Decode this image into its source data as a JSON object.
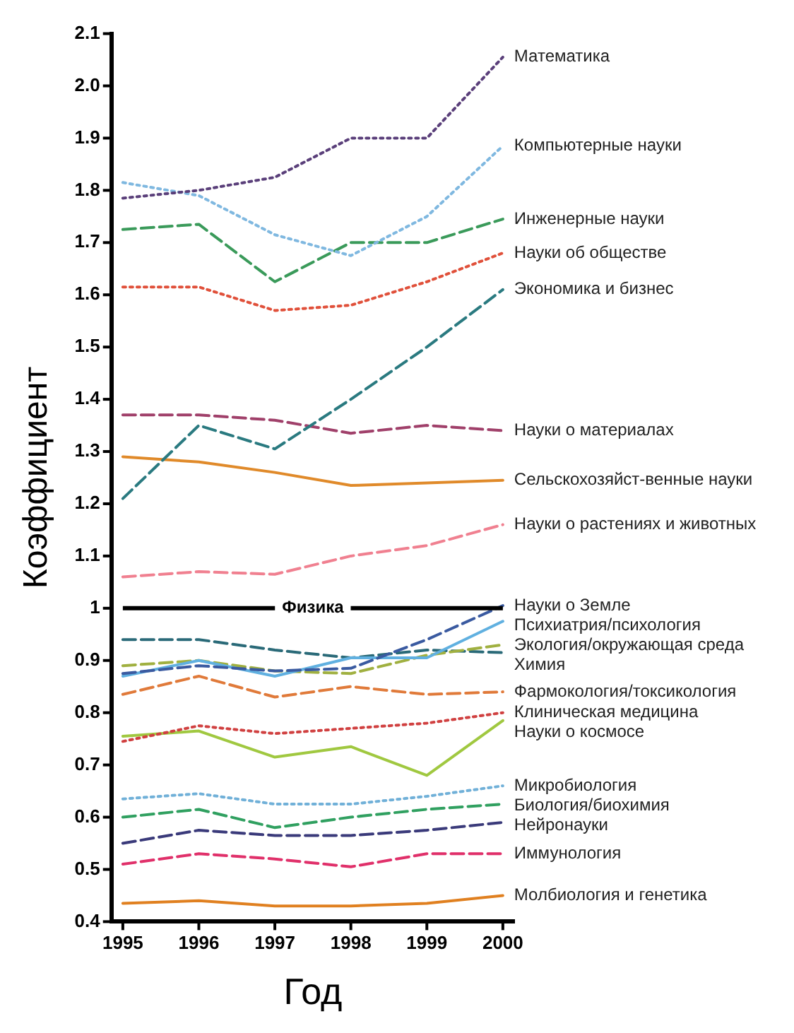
{
  "chart_data": {
    "type": "line",
    "xlabel": "Год",
    "ylabel": "Коэффициент",
    "x": [
      1995,
      1996,
      1997,
      1998,
      1999,
      2000
    ],
    "xlim": [
      1994.85,
      2000.15
    ],
    "xticks": [
      1995,
      1996,
      1997,
      1998,
      1999,
      2000
    ],
    "ylim": [
      0.4,
      2.1
    ],
    "yticks": [
      0.4,
      0.5,
      0.6,
      0.7,
      0.8,
      0.9,
      1,
      1.1,
      1.2,
      1.3,
      1.4,
      1.5,
      1.6,
      1.7,
      1.8,
      1.9,
      {
        "value": 2,
        "label": "2.0"
      },
      2.1
    ],
    "grid": false,
    "legend": false,
    "marker": "none",
    "ref_lines": [
      {
        "axis": "y",
        "value": 1,
        "label": "Физика",
        "color": "#000000"
      }
    ],
    "series": [
      {
        "name": "Математика",
        "color": "#5a3f7a",
        "line_style": "dotted",
        "values": [
          1.785,
          1.8,
          1.825,
          1.9,
          1.9,
          2.055
        ]
      },
      {
        "name": "Компьютерные науки",
        "color": "#7fb8e0",
        "line_style": "dotted",
        "values": [
          1.815,
          1.79,
          1.715,
          1.675,
          1.75,
          1.885
        ]
      },
      {
        "name": "Инженерные науки",
        "color": "#3a9a5a",
        "line_style": "dashed",
        "values": [
          1.725,
          1.735,
          1.625,
          1.7,
          1.7,
          1.745
        ]
      },
      {
        "name": "Науки об обществе",
        "color": "#e0503a",
        "line_style": "dotted",
        "values": [
          1.615,
          1.615,
          1.57,
          1.58,
          1.625,
          1.68
        ]
      },
      {
        "name": "Экономика и бизнес",
        "color": "#2a7a80",
        "line_style": "dashed",
        "values": [
          1.21,
          1.35,
          1.305,
          1.4,
          1.5,
          1.61
        ]
      },
      {
        "name": "Науки о материалах",
        "color": "#a0406a",
        "line_style": "dashed",
        "values": [
          1.37,
          1.37,
          1.36,
          1.335,
          1.35,
          1.34
        ]
      },
      {
        "name": "Сельскохозяйст-венные науки",
        "color": "#e08a2a",
        "line_style": "solid",
        "values": [
          1.29,
          1.28,
          1.26,
          1.235,
          1.24,
          1.245
        ]
      },
      {
        "name": "Науки о растениях и животных",
        "color": "#f08090",
        "line_style": "dashed",
        "values": [
          1.06,
          1.07,
          1.065,
          1.1,
          1.12,
          1.16
        ]
      },
      {
        "name": "Науки о Земле",
        "color": "#3a5aa0",
        "line_style": "dashed",
        "values": [
          0.875,
          0.89,
          0.88,
          0.885,
          0.94,
          1.005
        ]
      },
      {
        "name": "Психиатрия/психология",
        "color": "#60b0e0",
        "line_style": "solid",
        "values": [
          0.87,
          0.9,
          0.87,
          0.905,
          0.905,
          0.975
        ]
      },
      {
        "name": "Экология/окружающая среда",
        "color": "#a0b040",
        "line_style": "dashed",
        "values": [
          0.89,
          0.9,
          0.88,
          0.875,
          0.91,
          0.93
        ]
      },
      {
        "name": "Химия",
        "color": "#2a6a78",
        "line_style": "dashed",
        "values": [
          0.94,
          0.94,
          0.92,
          0.905,
          0.92,
          0.915
        ]
      },
      {
        "name": "Фармокология/токсикология",
        "color": "#e07a3a",
        "line_style": "dashed",
        "values": [
          0.835,
          0.87,
          0.83,
          0.85,
          0.835,
          0.84
        ]
      },
      {
        "name": "Клиническая медицина",
        "color": "#d04040",
        "line_style": "dotted",
        "values": [
          0.745,
          0.775,
          0.76,
          0.77,
          0.78,
          0.8
        ]
      },
      {
        "name": "Науки о космосе",
        "color": "#a0c840",
        "line_style": "solid",
        "values": [
          0.755,
          0.765,
          0.715,
          0.735,
          0.68,
          0.785
        ]
      },
      {
        "name": "Микробиология",
        "color": "#70b0d8",
        "line_style": "dotted",
        "values": [
          0.635,
          0.645,
          0.625,
          0.625,
          0.64,
          0.66
        ]
      },
      {
        "name": "Биология/биохимия",
        "color": "#30a060",
        "line_style": "dashed",
        "values": [
          0.6,
          0.615,
          0.58,
          0.6,
          0.615,
          0.625
        ]
      },
      {
        "name": "Нейронауки",
        "color": "#3a3a7a",
        "line_style": "dashed",
        "values": [
          0.55,
          0.575,
          0.565,
          0.565,
          0.575,
          0.59
        ]
      },
      {
        "name": "Иммунология",
        "color": "#e0306a",
        "line_style": "dashed",
        "values": [
          0.51,
          0.53,
          0.52,
          0.505,
          0.53,
          0.53
        ]
      },
      {
        "name": "Молбиология и генетика",
        "color": "#e08020",
        "line_style": "solid",
        "values": [
          0.435,
          0.44,
          0.43,
          0.43,
          0.435,
          0.45
        ]
      }
    ]
  }
}
